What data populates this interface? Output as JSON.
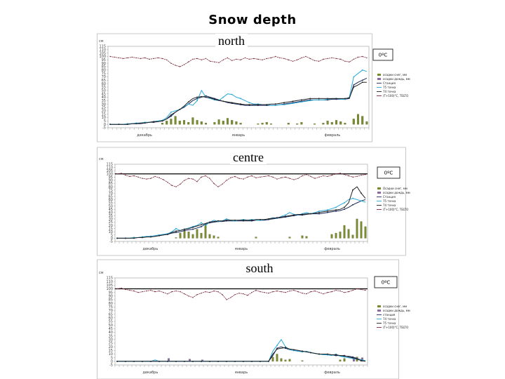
{
  "title": "Snow depth",
  "colors": {
    "bars": "#7a8c30",
    "bars2": "#8a6aa0",
    "temp_line": "#7a2a3a",
    "series_cyan": "#2aa8d8",
    "series_navy": "#1a2a5a",
    "series_purple": "#7a3a8a",
    "series_black": "#222222"
  },
  "chart_data": [
    {
      "id": "north",
      "type": "line",
      "title": "north",
      "ylabel": "см",
      "ylim": [
        -5,
        115
      ],
      "yticks": [
        -5,
        0,
        5,
        10,
        15,
        20,
        25,
        30,
        35,
        40,
        45,
        50,
        55,
        60,
        65,
        70,
        75,
        80,
        85,
        90,
        95,
        100,
        105,
        110,
        115
      ],
      "months": [
        "декабрь",
        "январь",
        "февраль"
      ],
      "zero_temp_label": "0ºC",
      "zero_temp_line": false,
      "legend": [
        "осадки снег, мм",
        "осадки дождь, мм",
        "Станция",
        "75 точка",
        "74 точка",
        "(Т+100)°С, TELTO"
      ],
      "x_count": 60,
      "temperature": [
        100,
        99,
        98,
        97,
        98,
        99,
        98,
        97,
        98,
        96,
        97,
        98,
        97,
        95,
        90,
        87,
        85,
        88,
        92,
        96,
        97,
        95,
        97,
        93,
        92,
        91,
        95,
        98,
        94,
        96,
        95,
        98,
        96,
        97,
        96,
        95,
        97,
        98,
        100,
        98,
        97,
        95,
        93,
        95,
        98,
        100,
        97,
        94,
        93,
        96,
        97,
        98,
        97,
        96,
        93,
        92,
        96,
        99,
        100,
        98
      ],
      "series": [
        {
          "name": "Станция",
          "values": [
            0,
            0,
            0,
            0,
            0,
            1,
            1,
            1,
            2,
            3,
            3,
            4,
            5,
            8,
            12,
            18,
            22,
            25,
            30,
            35,
            38,
            40,
            42,
            40,
            38,
            36,
            34,
            32,
            31,
            30,
            29,
            28,
            28,
            28,
            28,
            28,
            28,
            28,
            28,
            29,
            30,
            31,
            32,
            33,
            34,
            35,
            36,
            36,
            36,
            36,
            36,
            37,
            37,
            37,
            37,
            38,
            58,
            62,
            65,
            68
          ]
        },
        {
          "name": "75 точка",
          "values": [
            0,
            0,
            0,
            0,
            1,
            1,
            2,
            2,
            3,
            3,
            4,
            5,
            6,
            10,
            18,
            20,
            22,
            26,
            30,
            28,
            35,
            50,
            40,
            38,
            36,
            35,
            40,
            45,
            44,
            40,
            38,
            35,
            32,
            30,
            30,
            29,
            29,
            28,
            28,
            29,
            29,
            30,
            31,
            32,
            33,
            34,
            35,
            36,
            36,
            36,
            37,
            38,
            38,
            37,
            37,
            40,
            70,
            75,
            80,
            78
          ]
        },
        {
          "name": "74 точка",
          "values": [
            0,
            0,
            0,
            0,
            0,
            1,
            1,
            2,
            2,
            3,
            4,
            4,
            5,
            8,
            14,
            18,
            22,
            27,
            33,
            38,
            40,
            41,
            40,
            39,
            37,
            35,
            34,
            33,
            32,
            31,
            30,
            29,
            29,
            29,
            29,
            29,
            29,
            30,
            30,
            31,
            32,
            33,
            34,
            35,
            36,
            37,
            38,
            38,
            38,
            38,
            38,
            38,
            38,
            38,
            38,
            39,
            55,
            58,
            62,
            62
          ]
        }
      ],
      "bars": [
        0,
        0,
        0,
        0,
        0,
        0,
        0,
        0,
        0,
        0,
        0,
        0,
        2,
        5,
        8,
        12,
        5,
        6,
        3,
        10,
        6,
        4,
        2,
        0,
        3,
        7,
        5,
        9,
        6,
        4,
        2,
        0,
        0,
        0,
        1,
        2,
        3,
        1,
        0,
        0,
        0,
        2,
        0,
        1,
        3,
        0,
        0,
        1,
        0,
        2,
        5,
        3,
        6,
        4,
        2,
        0,
        8,
        15,
        12,
        4
      ]
    },
    {
      "id": "centre",
      "type": "line",
      "title": "centre",
      "ylabel": "см",
      "ylim": [
        -5,
        115
      ],
      "yticks": [
        -5,
        0,
        5,
        10,
        15,
        20,
        25,
        30,
        35,
        40,
        45,
        50,
        55,
        60,
        65,
        70,
        75,
        80,
        85,
        90,
        95,
        100,
        105,
        110,
        115
      ],
      "months": [
        "декабрь",
        "январь",
        "февраль"
      ],
      "zero_temp_label": "0ºC",
      "zero_temp_line": true,
      "legend": [
        "Осадки снег, мм",
        "осадки дождь, мм",
        "Станция",
        "75 точка",
        "74 точка",
        "(Т+100)°С, TELTO"
      ],
      "x_count": 60,
      "temperature": [
        100,
        101,
        98,
        96,
        97,
        95,
        93,
        92,
        93,
        96,
        94,
        91,
        87,
        82,
        80,
        84,
        90,
        93,
        92,
        88,
        95,
        97,
        93,
        85,
        80,
        84,
        90,
        94,
        96,
        93,
        92,
        95,
        97,
        94,
        95,
        96,
        97,
        95,
        92,
        94,
        95,
        93,
        91,
        93,
        97,
        99,
        96,
        93,
        95,
        97,
        96,
        98,
        100,
        101,
        99,
        97,
        95,
        96,
        98,
        99
      ],
      "series": [
        {
          "name": "Станция",
          "values": [
            0,
            0,
            0,
            0,
            1,
            1,
            2,
            2,
            3,
            3,
            4,
            5,
            6,
            8,
            9,
            10,
            12,
            13,
            14,
            16,
            18,
            22,
            24,
            25,
            26,
            26,
            27,
            27,
            27,
            27,
            27,
            27,
            27,
            28,
            28,
            28,
            29,
            30,
            31,
            32,
            33,
            34,
            35,
            36,
            36,
            37,
            38,
            38,
            38,
            39,
            40,
            41,
            42,
            43,
            45,
            48,
            52,
            55,
            58,
            60
          ]
        },
        {
          "name": "75 точка",
          "values": [
            0,
            0,
            0,
            0,
            1,
            1,
            2,
            3,
            3,
            4,
            5,
            6,
            7,
            10,
            15,
            12,
            14,
            16,
            18,
            20,
            24,
            20,
            25,
            28,
            26,
            27,
            30,
            28,
            27,
            28,
            29,
            28,
            29,
            28,
            28,
            29,
            30,
            32,
            31,
            34,
            36,
            40,
            37,
            36,
            38,
            40,
            38,
            40,
            42,
            43,
            44,
            46,
            48,
            52,
            55,
            60,
            62,
            60,
            58,
            56
          ]
        },
        {
          "name": "74 точка",
          "values": [
            0,
            0,
            0,
            0,
            0,
            1,
            1,
            2,
            2,
            3,
            4,
            5,
            6,
            9,
            11,
            12,
            14,
            15,
            17,
            19,
            21,
            23,
            25,
            26,
            27,
            27,
            28,
            28,
            28,
            28,
            28,
            28,
            28,
            29,
            29,
            29,
            30,
            31,
            32,
            33,
            34,
            35,
            36,
            37,
            37,
            38,
            38,
            39,
            40,
            41,
            42,
            43,
            44,
            45,
            48,
            55,
            75,
            80,
            70,
            62
          ]
        }
      ],
      "bars": [
        0,
        0,
        0,
        0,
        0,
        0,
        0,
        0,
        0,
        0,
        0,
        0,
        0,
        0,
        1,
        8,
        12,
        10,
        6,
        14,
        8,
        22,
        6,
        4,
        2,
        0,
        0,
        0,
        0,
        0,
        0,
        0,
        0,
        2,
        0,
        0,
        0,
        0,
        0,
        0,
        0,
        2,
        0,
        0,
        4,
        3,
        0,
        0,
        0,
        0,
        0,
        6,
        8,
        10,
        20,
        14,
        5,
        30,
        26,
        18
      ]
    },
    {
      "id": "south",
      "type": "line",
      "title": "south",
      "ylabel": "см",
      "ylim": [
        -5,
        115
      ],
      "yticks": [
        -5,
        0,
        5,
        10,
        15,
        20,
        25,
        30,
        35,
        40,
        45,
        50,
        55,
        60,
        65,
        70,
        75,
        80,
        85,
        90,
        95,
        100,
        105,
        110,
        115
      ],
      "months": [
        "декабрь",
        "январь",
        "февраль"
      ],
      "zero_temp_label": "0ºC",
      "zero_temp_line": true,
      "legend": [
        "осадки снег, мм",
        "осадки дождь, мм",
        "станция",
        "74 точка",
        "75 точка",
        "(T+100)°C, TELTO"
      ],
      "x_count": 60,
      "temperature": [
        100,
        101,
        99,
        98,
        97,
        95,
        96,
        97,
        98,
        96,
        97,
        95,
        93,
        96,
        97,
        96,
        93,
        90,
        88,
        92,
        94,
        96,
        95,
        97,
        96,
        92,
        85,
        88,
        92,
        94,
        93,
        91,
        95,
        98,
        96,
        95,
        94,
        96,
        97,
        96,
        95,
        97,
        98,
        96,
        94,
        93,
        96,
        97,
        95,
        93,
        95,
        96,
        98,
        97,
        95,
        96,
        98,
        100,
        99,
        98
      ],
      "series": [
        {
          "name": "станция",
          "values": [
            0,
            0,
            0,
            0,
            0,
            0,
            0,
            0,
            0,
            0,
            0,
            0,
            0,
            0,
            0,
            0,
            0,
            0,
            0,
            0,
            0,
            0,
            0,
            0,
            0,
            0,
            0,
            0,
            0,
            0,
            0,
            0,
            0,
            0,
            0,
            0,
            0,
            8,
            18,
            20,
            18,
            16,
            15,
            14,
            14,
            13,
            12,
            11,
            10,
            10,
            9,
            9,
            8,
            8,
            7,
            7,
            6,
            4,
            2,
            0
          ]
        },
        {
          "name": "74 точка",
          "values": [
            0,
            0,
            0,
            0,
            0,
            0,
            0,
            0,
            0,
            2,
            0,
            0,
            0,
            0,
            0,
            0,
            0,
            0,
            0,
            0,
            0,
            0,
            0,
            0,
            0,
            0,
            0,
            0,
            0,
            0,
            0,
            0,
            0,
            0,
            0,
            0,
            0,
            14,
            22,
            30,
            20,
            16,
            15,
            14,
            13,
            14,
            12,
            11,
            10,
            9,
            9,
            8,
            10,
            7,
            6,
            5,
            4,
            3,
            2,
            1
          ]
        },
        {
          "name": "75 точка",
          "values": [
            0,
            0,
            0,
            0,
            0,
            0,
            0,
            0,
            0,
            0,
            0,
            0,
            0,
            0,
            0,
            0,
            0,
            0,
            0,
            0,
            0,
            0,
            0,
            0,
            0,
            0,
            0,
            0,
            0,
            0,
            0,
            0,
            0,
            0,
            0,
            0,
            0,
            10,
            17,
            18,
            19,
            17,
            16,
            15,
            14,
            13,
            12,
            11,
            10,
            10,
            10,
            9,
            9,
            8,
            8,
            6,
            5,
            3,
            1,
            0
          ]
        }
      ],
      "bars": [
        0,
        0,
        0,
        0,
        0,
        0,
        0,
        0,
        0,
        0,
        0,
        0,
        0,
        0,
        0,
        0,
        0,
        0,
        0,
        0,
        0,
        0,
        0,
        0,
        0,
        0,
        0,
        0,
        0,
        0,
        0,
        0,
        0,
        0,
        0,
        0,
        0,
        6,
        10,
        4,
        2,
        3,
        0,
        0,
        1,
        0,
        0,
        0,
        0,
        0,
        0,
        0,
        0,
        2,
        4,
        0,
        0,
        6,
        3,
        0
      ],
      "bars2": [
        0,
        0,
        0,
        0,
        0,
        0,
        0,
        0,
        0,
        0,
        0,
        0,
        4,
        0,
        0,
        0,
        0,
        3,
        0,
        0,
        2,
        0,
        0,
        0,
        0,
        0,
        0,
        0,
        0,
        0,
        0,
        0,
        0,
        0,
        0,
        0,
        0,
        0,
        0,
        0,
        0,
        0,
        0,
        0,
        0,
        0,
        0,
        0,
        0,
        0,
        0,
        0,
        0,
        0,
        0,
        0,
        4,
        0,
        5,
        0
      ]
    }
  ]
}
